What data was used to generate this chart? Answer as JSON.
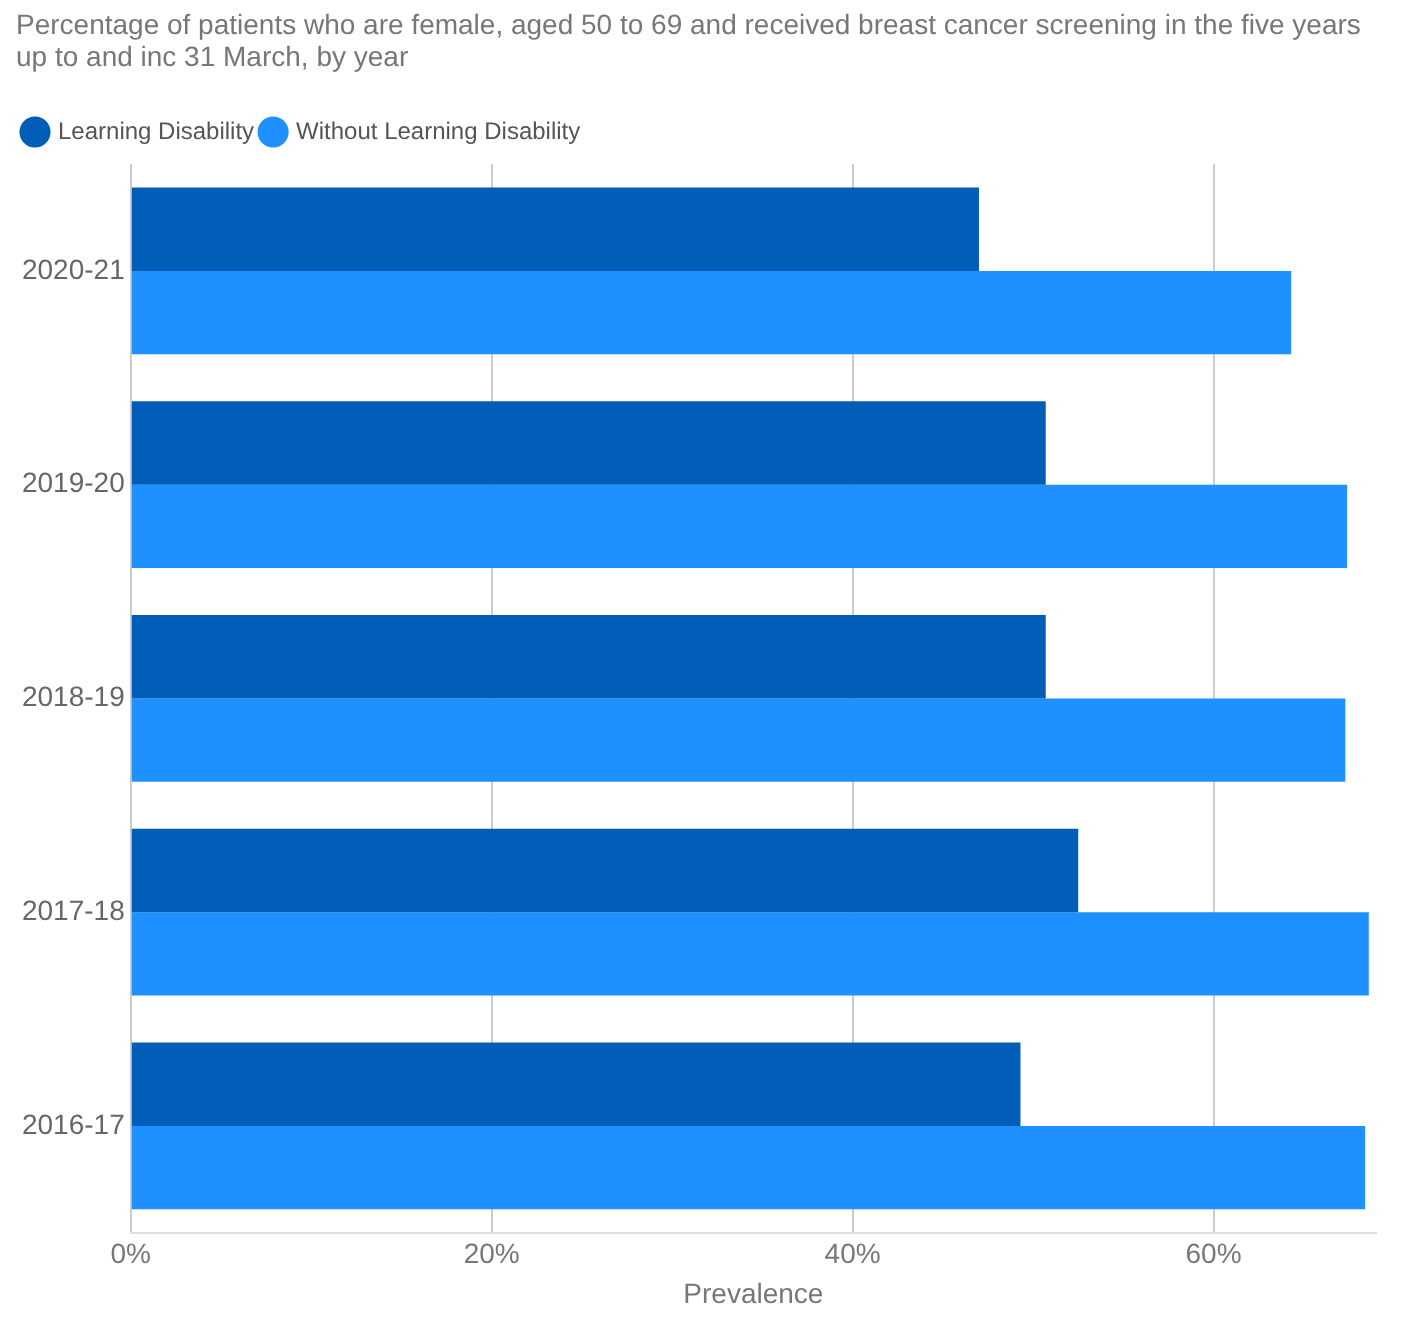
{
  "chart_data": {
    "type": "bar",
    "orientation": "horizontal",
    "title": "Percentage of patients who are female, aged 50 to 69 and received breast cancer screening in the five years up to and inc 31 March, by year",
    "xlabel": "Prevalence",
    "categories": [
      "2020-21",
      "2019-20",
      "2018-19",
      "2017-18",
      "2016-17"
    ],
    "series": [
      {
        "name": "Learning Disability",
        "color": "#005eb8",
        "values": [
          47.0,
          50.7,
          50.7,
          52.5,
          49.3
        ]
      },
      {
        "name": "Without Learning Disability",
        "color": "#1e90ff",
        "values": [
          64.3,
          67.4,
          67.3,
          68.6,
          68.4
        ]
      }
    ],
    "xlim": [
      0,
      69
    ],
    "xticks": [
      {
        "value": 0,
        "label": "0%"
      },
      {
        "value": 20,
        "label": "20%"
      },
      {
        "value": 40,
        "label": "40%"
      },
      {
        "value": 60,
        "label": "60%"
      }
    ],
    "grid": "x",
    "legend": "top left"
  }
}
